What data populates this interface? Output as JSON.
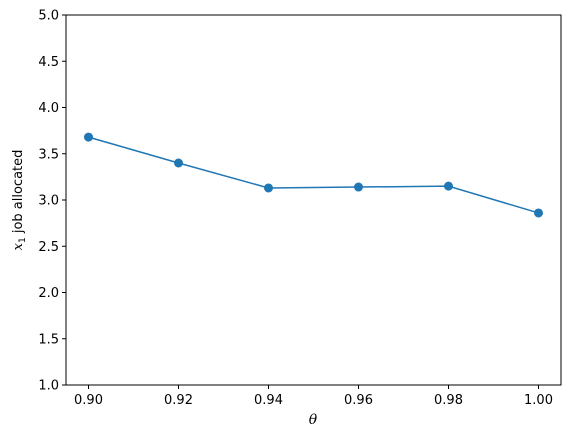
{
  "chart_data": {
    "type": "line",
    "title": "",
    "xlabel": "θ",
    "ylabel": "x",
    "ylabel_subscript": "1",
    "ylabel_suffix": " job allocated",
    "xlim": [
      0.895,
      1.005
    ],
    "ylim": [
      1.0,
      5.0
    ],
    "xticks": [
      0.9,
      0.92,
      0.94,
      0.96,
      0.98,
      1.0
    ],
    "xtick_labels": [
      "0.90",
      "0.92",
      "0.94",
      "0.96",
      "0.98",
      "1.00"
    ],
    "yticks": [
      1.0,
      1.5,
      2.0,
      2.5,
      3.0,
      3.5,
      4.0,
      4.5,
      5.0
    ],
    "ytick_labels": [
      "1.0",
      "1.5",
      "2.0",
      "2.5",
      "3.0",
      "3.5",
      "4.0",
      "4.5",
      "5.0"
    ],
    "grid": false,
    "series": [
      {
        "color": "#1f77b4",
        "marker": "circle",
        "x": [
          0.9,
          0.92,
          0.94,
          0.96,
          0.98,
          1.0
        ],
        "y": [
          3.68,
          3.4,
          3.13,
          3.14,
          3.15,
          2.86
        ]
      }
    ]
  }
}
